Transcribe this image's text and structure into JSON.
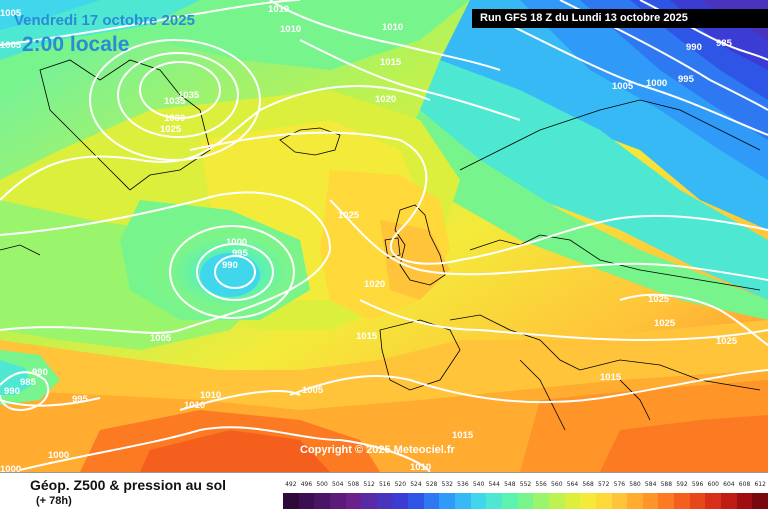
{
  "map": {
    "date_line": "Vendredi 17 octobre 2025",
    "time_line": "2:00 locale",
    "run_banner": "Run GFS 18 Z du Lundi 13 octobre 2025",
    "copyright": "Copyright © 2025 Meteociel.fr",
    "title": "Géop. Z500 & pression au sol",
    "subtitle": "(+ 78h)"
  },
  "legend": {
    "labels": [
      "492",
      "496",
      "500",
      "504",
      "508",
      "512",
      "516",
      "520",
      "524",
      "528",
      "532",
      "536",
      "540",
      "544",
      "548",
      "552",
      "556",
      "560",
      "564",
      "568",
      "572",
      "576",
      "580",
      "584",
      "588",
      "592",
      "596",
      "600",
      "604",
      "608",
      "612"
    ],
    "colors": [
      "#2d0a3a",
      "#3c0f50",
      "#4b1565",
      "#5a1b7a",
      "#6a218e",
      "#5a2aa6",
      "#4a33bd",
      "#3a3cd4",
      "#2f55e6",
      "#2e78f2",
      "#2f9af7",
      "#36b9f5",
      "#40d6ec",
      "#4ee8d2",
      "#5ef2b0",
      "#78f48c",
      "#9af46c",
      "#bdf250",
      "#dcef3c",
      "#f4ea3a",
      "#ffd83a",
      "#ffc43a",
      "#ffac30",
      "#ff9428",
      "#fb7a22",
      "#f45f1e",
      "#e8461b",
      "#d82f18",
      "#c01a15",
      "#a10c12",
      "#7a0710"
    ]
  },
  "pressure_labels": [
    {
      "text": "1005",
      "name": "isobar-1005-top-left"
    },
    {
      "text": "1005",
      "name": "isobar-1005-left-edge"
    },
    {
      "text": "1010",
      "name": "isobar-1010-top"
    },
    {
      "text": "1010",
      "name": "isobar-1010-top-b"
    },
    {
      "text": "1010",
      "name": "isobar-1010-north"
    },
    {
      "text": "1015",
      "name": "isobar-1015-north"
    },
    {
      "text": "1020",
      "name": "isobar-1020-north"
    },
    {
      "text": "1035",
      "name": "isobar-1035-greenland"
    },
    {
      "text": "1035",
      "name": "isobar-1035-greenland-b"
    },
    {
      "text": "1030",
      "name": "isobar-1030-greenland"
    },
    {
      "text": "1025",
      "name": "isobar-1025-greenland"
    },
    {
      "text": "1025",
      "name": "isobar-1025-atlantic"
    },
    {
      "text": "1020",
      "name": "isobar-1020-atlantic"
    },
    {
      "text": "1015",
      "name": "isobar-1015-atlantic"
    },
    {
      "text": "1000",
      "name": "isobar-1000-low"
    },
    {
      "text": "995",
      "name": "isobar-995-low"
    },
    {
      "text": "990",
      "name": "isobar-990-low"
    },
    {
      "text": "1005",
      "name": "isobar-1005-mid-atlantic"
    },
    {
      "text": "1005",
      "name": "isobar-1005-iberia-west"
    },
    {
      "text": "1010",
      "name": "isobar-1010-south"
    },
    {
      "text": "1010",
      "name": "isobar-1010-south-b"
    },
    {
      "text": "995",
      "name": "isobar-995-southwest"
    },
    {
      "text": "990",
      "name": "isobar-990-southwest"
    },
    {
      "text": "985",
      "name": "isobar-985-southwest"
    },
    {
      "text": "990",
      "name": "isobar-990-southwest-b"
    },
    {
      "text": "1000",
      "name": "isobar-1000-southwest"
    },
    {
      "text": "1000",
      "name": "isobar-1000-bottom-left"
    },
    {
      "text": "1015",
      "name": "isobar-1015-mediterranean"
    },
    {
      "text": "1010",
      "name": "isobar-1010-mediterranean"
    },
    {
      "text": "1015",
      "name": "isobar-1015-balkans"
    },
    {
      "text": "1025",
      "name": "isobar-1025-east"
    },
    {
      "text": "1025",
      "name": "isobar-1025-east-b"
    },
    {
      "text": "1025",
      "name": "isobar-1025-east-c"
    },
    {
      "text": "1005",
      "name": "isobar-1005-scandinavia"
    },
    {
      "text": "1000",
      "name": "isobar-1000-scandinavia"
    },
    {
      "text": "995",
      "name": "isobar-995-northeast"
    },
    {
      "text": "990",
      "name": "isobar-990-northeast"
    },
    {
      "text": "985",
      "name": "isobar-985-northeast"
    }
  ]
}
